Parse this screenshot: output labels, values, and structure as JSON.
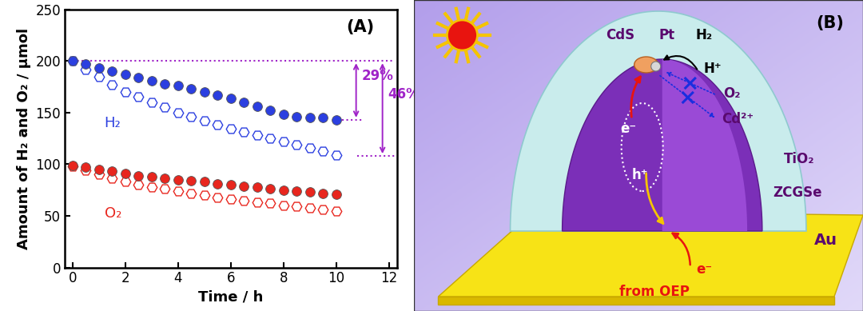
{
  "chart_data": {
    "type": "scatter",
    "panel_label": "(A)",
    "xlabel": "Time / h",
    "ylabel": "Amount of H₂ and O₂ / μmol",
    "x": [
      0,
      0.5,
      1,
      1.5,
      2,
      2.5,
      3,
      3.5,
      4,
      4.5,
      5,
      5.5,
      6,
      6.5,
      7,
      7.5,
      8,
      8.5,
      9,
      9.5,
      10
    ],
    "series": [
      {
        "color": "#2b3fe0",
        "marker": "open-hexagon",
        "values": [
          200,
          192,
          185,
          177,
          170,
          165,
          160,
          155,
          150,
          146,
          142,
          138,
          134,
          131,
          128,
          125,
          122,
          119,
          116,
          113,
          109
        ]
      },
      {
        "color": "#2b3fe0",
        "marker": "circle",
        "values": [
          200,
          197,
          193,
          190,
          187,
          184,
          181,
          178,
          176,
          173,
          170,
          167,
          164,
          160,
          156,
          152,
          148,
          146,
          145,
          145,
          143
        ]
      },
      {
        "color": "#e8261e",
        "marker": "open-hexagon",
        "values": [
          98,
          94,
          90,
          86,
          83,
          80,
          78,
          76,
          74,
          72,
          70,
          68,
          66,
          65,
          63,
          62,
          60,
          59,
          58,
          56,
          55
        ]
      },
      {
        "color": "#e8261e",
        "marker": "circle",
        "values": [
          99,
          97,
          95,
          93,
          91,
          89,
          88,
          86,
          85,
          84,
          83,
          81,
          80,
          79,
          78,
          76,
          75,
          74,
          73,
          72,
          71
        ]
      }
    ],
    "annotations": [
      {
        "text": "H₂",
        "color": "#2b3fe0"
      },
      {
        "text": "O₂",
        "color": "#e8261e"
      },
      {
        "text": "29%",
        "from": 200,
        "to": 143,
        "color": "#a024c8"
      },
      {
        "text": "46%",
        "from": 200,
        "to": 108,
        "color": "#a024c8"
      }
    ],
    "xlim": [
      -0.3,
      12.3
    ],
    "xticks": [
      0,
      2,
      4,
      6,
      8,
      10,
      12
    ],
    "ylim": [
      0,
      250
    ],
    "yticks": [
      0,
      50,
      100,
      150,
      200,
      250
    ]
  },
  "diagram": {
    "labels": {
      "panel": "(B)",
      "cds": "CdS",
      "pt": "Pt",
      "h2": "H₂",
      "h_plus": "H⁺",
      "o2": "O₂",
      "cd_ion": "Cd²⁺",
      "tio2": "TiO₂",
      "zcgse": "ZCGSe",
      "e_inner": "e⁻",
      "h_inner": "h⁺",
      "au": "Au",
      "e_oep": "e⁻",
      "from_oep": "from OEP"
    }
  }
}
